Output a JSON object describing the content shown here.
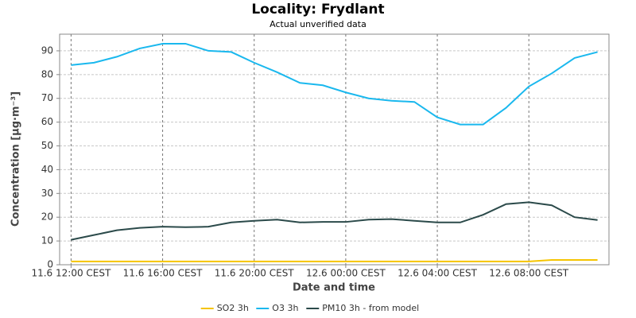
{
  "chart_data": {
    "type": "line",
    "title": "Locality: Frydlant",
    "subtitle": "Actual unverified data",
    "x_label": "Date and time",
    "y_label": "Concentration [µg·m⁻³]",
    "x": [
      "11.6 12:00",
      "11.6 13:00",
      "11.6 14:00",
      "11.6 15:00",
      "11.6 16:00",
      "11.6 17:00",
      "11.6 18:00",
      "11.6 19:00",
      "11.6 20:00",
      "11.6 21:00",
      "11.6 22:00",
      "11.6 23:00",
      "12.6 00:00",
      "12.6 01:00",
      "12.6 02:00",
      "12.6 03:00",
      "12.6 04:00",
      "12.6 05:00",
      "12.6 06:00",
      "12.6 07:00",
      "12.6 08:00",
      "12.6 09:00",
      "12.6 10:00",
      "12.6 11:00"
    ],
    "xlim": [
      "11.6 11:30",
      "12.6 11:30"
    ],
    "xticks": [
      {
        "value": "11.6 12:00",
        "label": "11.6 12:00 CEST"
      },
      {
        "value": "11.6 16:00",
        "label": "11.6 16:00 CEST"
      },
      {
        "value": "11.6 20:00",
        "label": "11.6 20:00 CEST"
      },
      {
        "value": "12.6 00:00",
        "label": "12.6 00:00 CEST"
      },
      {
        "value": "12.6 04:00",
        "label": "12.6 04:00 CEST"
      },
      {
        "value": "12.6 08:00",
        "label": "12.6 08:00 CEST"
      }
    ],
    "ylim": [
      0,
      97
    ],
    "yticks": [
      0,
      10,
      20,
      30,
      40,
      50,
      60,
      70,
      80,
      90
    ],
    "grid": true,
    "legend": "bottom",
    "series": [
      {
        "name": "SO2 3h",
        "color": "#f5c400",
        "values": [
          1.4,
          1.4,
          1.4,
          1.4,
          1.4,
          1.4,
          1.4,
          1.4,
          1.4,
          1.4,
          1.4,
          1.4,
          1.4,
          1.4,
          1.4,
          1.4,
          1.4,
          1.4,
          1.4,
          1.4,
          1.4,
          2,
          2,
          2
        ]
      },
      {
        "name": "O3 3h",
        "color": "#1ab8ee",
        "values": [
          84,
          85,
          87.5,
          91,
          93,
          93,
          90,
          89.5,
          85,
          81,
          76.5,
          75.5,
          72.5,
          70,
          69,
          68.5,
          62,
          59,
          59,
          66,
          75,
          80.5,
          87,
          89.5
        ]
      },
      {
        "name": "PM10 3h - from model",
        "color": "#2b4a4a",
        "values": [
          10.5,
          12.5,
          14.5,
          15.5,
          16,
          15.8,
          16,
          17.8,
          18.5,
          19,
          17.8,
          18,
          18,
          19,
          19.2,
          18.5,
          17.8,
          17.8,
          21,
          25.5,
          26.3,
          25,
          20,
          18.8
        ]
      }
    ]
  }
}
